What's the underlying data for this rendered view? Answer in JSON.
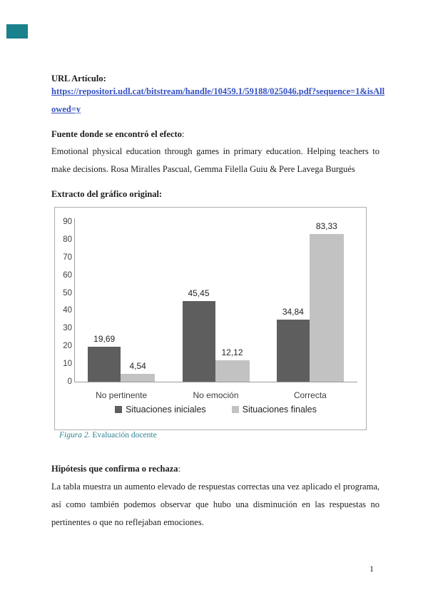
{
  "annotation": {
    "teal_box_color": "#1a808b"
  },
  "colors": {
    "link_blue": "#3551c1",
    "caption_teal": "#2f8391"
  },
  "sections": {
    "colon": ":",
    "url_label": "URL Artículo:",
    "url_line1": "https://repositori.udl.cat/bitstream/handle/10459.1/59188/025046.pdf?sequence=1&isAll",
    "url_line2": "owed=y",
    "fuente_label": "Fuente donde se encontró el efecto",
    "fuente_text": "Emotional physical education through games in primary education. Helping teachers to make decisions. Rosa Miralles Pascual, Gemma Filella Guiu & Pere Lavega Burgués",
    "extracto_label": "Extracto del gráfico original:",
    "figura_label": "Figura 2.",
    "figura_caption": " Evaluación docente",
    "hipotesis_label": "Hipótesis que confirma o rechaza",
    "hipotesis_text": "La tabla muestra un aumento elevado de respuestas correctas una vez aplicado el programa, así como también podemos observar que hubo una disminución en las respuestas no pertinentes o que no reflejaban emociones."
  },
  "page": {
    "number": "1"
  },
  "chart_data": {
    "type": "bar",
    "title": "",
    "xlabel": "",
    "ylabel": "",
    "categories": [
      "No pertinente",
      "No emoción",
      "Correcta"
    ],
    "series": [
      {
        "name": "Situaciones iniciales",
        "color": "#5e5e5e",
        "values": [
          19.69,
          45.45,
          34.84
        ],
        "labels": [
          "19,69",
          "45,45",
          "34,84"
        ]
      },
      {
        "name": "Situaciones finales",
        "color": "#c2c2c2",
        "values": [
          4.54,
          12.12,
          83.33
        ],
        "labels": [
          "4,54",
          "12,12",
          "83,33"
        ]
      }
    ],
    "ylim": [
      0,
      90
    ],
    "yticks": [
      0,
      10,
      20,
      30,
      40,
      50,
      60,
      70,
      80,
      90
    ],
    "grid": false,
    "legend_position": "bottom"
  }
}
